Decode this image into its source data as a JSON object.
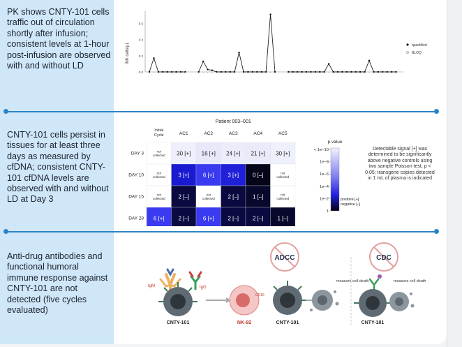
{
  "sections": [
    {
      "text": "PK shows CNTY-101 cells traffic out of circulation shortly after infusion; consistent levels at 1-hour post-infusion are observed with and without LD"
    },
    {
      "text": "CNTY-101 cells persist in tissues for at least three days as measured by cfDNA; consistent CNTY-101 cfDNA levels are observed with and without LD at Day 3"
    },
    {
      "text": "Anti-drug antibodies and functional humoral immune response against CNTY-101 are not detected (five cycles evaluated)"
    }
  ],
  "pk_chart": {
    "ylabel": "iNK cells/µL",
    "yticks": [
      "0.0",
      "0.2",
      "0.4",
      "0.6"
    ],
    "ymax": 0.75,
    "legend": [
      {
        "label": "quantified"
      },
      {
        "label": "BLOQ"
      }
    ],
    "groups": [
      {
        "values": [
          0.0,
          0.17,
          0.0,
          0.0,
          0.0,
          0.0,
          0.0,
          0.0,
          0.0
        ]
      },
      {
        "values": [
          0.0,
          0.13,
          0.03,
          0.02,
          0.0,
          0.0,
          0.0,
          0.0,
          0.0,
          0.24,
          0.0,
          0.0,
          0.0,
          0.0,
          0.0,
          0.0,
          0.71,
          0.0
        ]
      },
      {
        "values": [
          0.0,
          0.0,
          0.0,
          0.0,
          0.0,
          0.0,
          0.0,
          0.0,
          0.0,
          0.1,
          0.0,
          0.0,
          0.0,
          0.0,
          0.0,
          0.0,
          0.0,
          0.0,
          0.14,
          0.0,
          0.0,
          0.0,
          0.0,
          0.0,
          0.0
        ]
      }
    ]
  },
  "heatmap": {
    "title": "Patient 003–001",
    "columns": [
      "Initial Cycle",
      "AC1",
      "AC2",
      "AC3",
      "AC4",
      "AC5"
    ],
    "rows": [
      {
        "label": "DAY 3",
        "cells": [
          {
            "text": "not collected",
            "color": "#ffffff",
            "light": false
          },
          {
            "text": "30 [+]",
            "color": "#eef0fb",
            "light": false
          },
          {
            "text": "16 [+]",
            "color": "#e7e9fb",
            "light": false
          },
          {
            "text": "24 [+]",
            "color": "#ebedfb",
            "light": false
          },
          {
            "text": "21 [+]",
            "color": "#e9ebfb",
            "light": false
          },
          {
            "text": "30 [+]",
            "color": "#eef0fb",
            "light": false
          }
        ]
      },
      {
        "label": "DAY 10",
        "cells": [
          {
            "text": "not collected",
            "color": "#ffffff",
            "light": false
          },
          {
            "text": "3 [+]",
            "color": "#1a1ad0",
            "light": true
          },
          {
            "text": "6 [+]",
            "color": "#3a3af0",
            "light": true
          },
          {
            "text": "3 [+]",
            "color": "#2020d8",
            "light": true
          },
          {
            "text": "0 [–]",
            "color": "#05051a",
            "light": true
          },
          {
            "text": "not collected",
            "color": "#ffffff",
            "light": false
          }
        ]
      },
      {
        "label": "DAY 15",
        "cells": [
          {
            "text": "not collected",
            "color": "#ffffff",
            "light": false
          },
          {
            "text": "2 [–]",
            "color": "#0a0a40",
            "light": true
          },
          {
            "text": "not collected",
            "color": "#ffffff",
            "light": false
          },
          {
            "text": "2 [–]",
            "color": "#0a0a40",
            "light": true
          },
          {
            "text": "1 [–]",
            "color": "#08082c",
            "light": true
          },
          {
            "text": "not collected",
            "color": "#ffffff",
            "light": false
          }
        ]
      },
      {
        "label": "DAY 28",
        "cells": [
          {
            "text": "6 [+]",
            "color": "#3a3af0",
            "light": true
          },
          {
            "text": "2 [–]",
            "color": "#0a0a40",
            "light": true
          },
          {
            "text": "6 [+]",
            "color": "#3a3af0",
            "light": true
          },
          {
            "text": "2 [–]",
            "color": "#0a0a40",
            "light": true
          },
          {
            "text": "2 [–]",
            "color": "#0a0a40",
            "light": true
          },
          {
            "text": "1 [–]",
            "color": "#08082c",
            "light": true
          }
        ]
      }
    ],
    "scale": {
      "title": "p value",
      "ticks": [
        "< 1e−10",
        "1e−8",
        "1e−6",
        "1e−4",
        "1e−2",
        "1"
      ],
      "positive_label": "positive [+]",
      "negative_label": "negative [–]"
    },
    "note": "Detectable signal [+] was determined to be significantly above negative controls using two sample Poisson test, p < 0.05; transgene copies detected in 1 mL of plasma is indicated"
  },
  "diagram": {
    "igm": "IgM",
    "igg": "IgG",
    "cell1": "CNTY-101",
    "nk": "NK-92",
    "cd16": "CD16",
    "cell2": "CNTY-101",
    "measure1": "measure cell death",
    "adcc": "ADCC",
    "cdc": "CDC",
    "cell3": "CNTY-101",
    "measure2": "measure cell death"
  },
  "colors": {
    "left_band": "#cfe7f8",
    "divider": "#2c83c6",
    "heat_high": "#3a3af0",
    "heat_dark": "#05051a"
  }
}
